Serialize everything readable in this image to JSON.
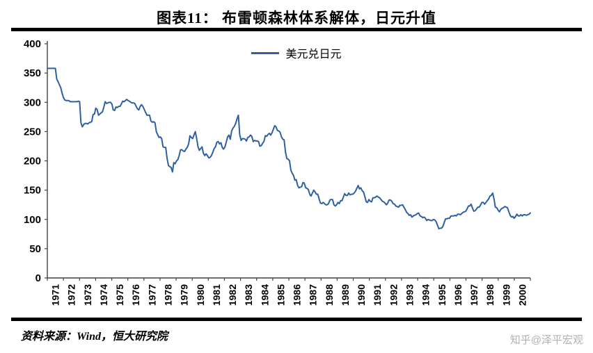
{
  "title": "图表11： 布雷顿森林体系解体，日元升值",
  "legend": "美元兑日元",
  "source": "资料来源：Wind，恒大研究院",
  "watermark": "知乎@泽平宏观",
  "chart_data": {
    "type": "line",
    "title": "图表11： 布雷顿森林体系解体，日元升值",
    "series_name": "美元兑日元",
    "frequency": "monthly",
    "x_start_year": 1971,
    "x_end_year": 2000,
    "ylim": [
      0,
      400
    ],
    "y_ticks": [
      0,
      50,
      100,
      150,
      200,
      250,
      300,
      350,
      400
    ],
    "x_tick_labels": [
      "1971",
      "1972",
      "1973",
      "1974",
      "1975",
      "1976",
      "1977",
      "1978",
      "1979",
      "1980",
      "1981",
      "1982",
      "1983",
      "1984",
      "1985",
      "1986",
      "1987",
      "1988",
      "1989",
      "1990",
      "1991",
      "1992",
      "1993",
      "1994",
      "1995",
      "1996",
      "1997",
      "1998",
      "1999",
      "2000"
    ],
    "grid": false,
    "legend_position": "top-center",
    "line_color": "#2e5fa3",
    "values": [
      358,
      358,
      358,
      358,
      358,
      358,
      358,
      340,
      335,
      330,
      325,
      315,
      308,
      304,
      303,
      303,
      303,
      301,
      301,
      301,
      301,
      301,
      301,
      302,
      301,
      265,
      258,
      262,
      264,
      264,
      263,
      265,
      266,
      267,
      279,
      280,
      290,
      288,
      278,
      280,
      282,
      284,
      292,
      301,
      298,
      299,
      300,
      300,
      297,
      287,
      286,
      292,
      291,
      293,
      293,
      297,
      302,
      301,
      303,
      305,
      303,
      302,
      300,
      299,
      299,
      298,
      293,
      289,
      287,
      293,
      296,
      293,
      288,
      283,
      278,
      278,
      278,
      268,
      266,
      267,
      265,
      250,
      245,
      240,
      241,
      238,
      224,
      223,
      223,
      204,
      192,
      190,
      189,
      181,
      197,
      195,
      200,
      202,
      209,
      219,
      219,
      217,
      216,
      220,
      223,
      229,
      243,
      240,
      238,
      244,
      250,
      238,
      224,
      218,
      221,
      224,
      213,
      209,
      212,
      209,
      205,
      206,
      209,
      215,
      221,
      224,
      232,
      233,
      229,
      231,
      223,
      220,
      224,
      232,
      241,
      244,
      237,
      251,
      256,
      259,
      264,
      272,
      278,
      245,
      235,
      238,
      238,
      237,
      234,
      240,
      241,
      244,
      242,
      233,
      235,
      234,
      234,
      233,
      225,
      226,
      230,
      233,
      243,
      242,
      245,
      247,
      244,
      248,
      254,
      260,
      258,
      252,
      251,
      249,
      241,
      237,
      236,
      215,
      204,
      203,
      200,
      184,
      179,
      175,
      167,
      168,
      158,
      154,
      155,
      156,
      163,
      162,
      154,
      153,
      151,
      143,
      140,
      145,
      150,
      147,
      143,
      143,
      135,
      128,
      127,
      129,
      127,
      125,
      125,
      127,
      133,
      134,
      134,
      125,
      123,
      125,
      129,
      127,
      132,
      132,
      138,
      144,
      141,
      141,
      145,
      142,
      143,
      143,
      145,
      148,
      153,
      158,
      152,
      154,
      149,
      147,
      139,
      130,
      129,
      134,
      131,
      130,
      137,
      137,
      138,
      140,
      138,
      137,
      134,
      131,
      130,
      128,
      125,
      128,
      133,
      133,
      131,
      127,
      126,
      123,
      122,
      121,
      124,
      124,
      125,
      121,
      117,
      112,
      110,
      107,
      108,
      104,
      106,
      107,
      108,
      110,
      111,
      106,
      105,
      103,
      104,
      102,
      98,
      100,
      99,
      98,
      98,
      100,
      99,
      96,
      90,
      84,
      85,
      85,
      88,
      95,
      101,
      101,
      102,
      102,
      106,
      106,
      106,
      107,
      106,
      109,
      109,
      108,
      110,
      112,
      113,
      114,
      118,
      123,
      123,
      126,
      119,
      114,
      115,
      118,
      121,
      121,
      125,
      129,
      129,
      126,
      129,
      132,
      135,
      140,
      141,
      145,
      135,
      121,
      120,
      116,
      113,
      117,
      119,
      120,
      122,
      121,
      120,
      113,
      107,
      104,
      105,
      102,
      105,
      109,
      106,
      106,
      108,
      106,
      108,
      108,
      107,
      108,
      109,
      111
    ]
  }
}
